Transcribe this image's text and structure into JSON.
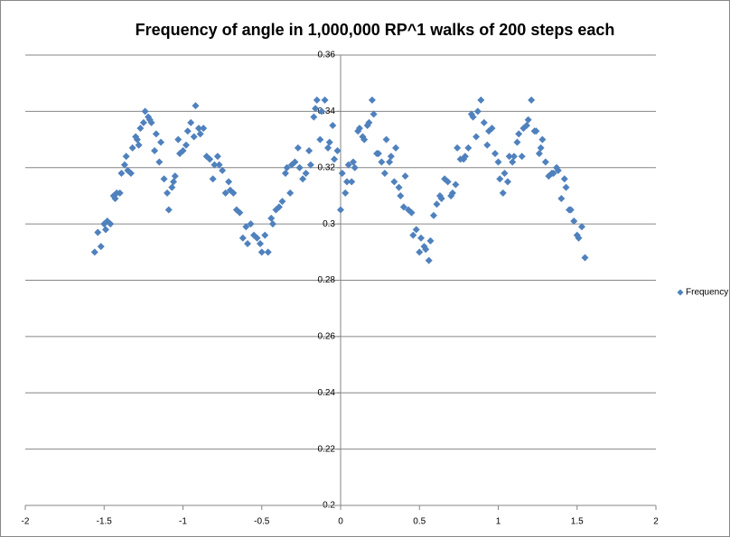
{
  "chart_data": {
    "type": "scatter",
    "title": "Frequency of angle in 1,000,000 RP^1 walks of 200 steps each",
    "xlim": [
      -2,
      2
    ],
    "xticks": [
      -2,
      -1.5,
      -1,
      -0.5,
      0,
      0.5,
      1,
      1.5,
      2
    ],
    "ylim": [
      0.2,
      0.36
    ],
    "yticks": [
      0.2,
      0.22,
      0.24,
      0.26,
      0.28,
      0.3,
      0.32,
      0.34,
      0.36
    ],
    "grid": true,
    "legend": "right",
    "series": [
      {
        "name": "Frequency",
        "color": "#4f81bd",
        "x": [
          -1.56,
          -1.54,
          -1.52,
          -1.5,
          -1.49,
          -1.48,
          -1.46,
          -1.44,
          -1.43,
          -1.42,
          -1.4,
          -1.39,
          -1.37,
          -1.36,
          -1.35,
          -1.33,
          -1.32,
          -1.3,
          -1.29,
          -1.28,
          -1.27,
          -1.25,
          -1.24,
          -1.22,
          -1.21,
          -1.2,
          -1.18,
          -1.17,
          -1.15,
          -1.14,
          -1.12,
          -1.1,
          -1.09,
          -1.07,
          -1.06,
          -1.05,
          -1.03,
          -1.02,
          -1,
          -0.98,
          -0.97,
          -0.95,
          -0.93,
          -0.92,
          -0.9,
          -0.89,
          -0.87,
          -0.85,
          -0.83,
          -0.81,
          -0.8,
          -0.78,
          -0.77,
          -0.75,
          -0.73,
          -0.71,
          -0.7,
          -0.68,
          -0.66,
          -0.64,
          -0.62,
          -0.6,
          -0.59,
          -0.57,
          -0.55,
          -0.53,
          -0.51,
          -0.5,
          -0.48,
          -0.46,
          -0.44,
          -0.43,
          -0.41,
          -0.39,
          -0.37,
          -0.35,
          -0.34,
          -0.32,
          -0.31,
          -0.29,
          -0.27,
          -0.26,
          -0.24,
          -0.22,
          -0.2,
          -0.19,
          -0.17,
          -0.16,
          -0.15,
          -0.13,
          -0.12,
          -0.1,
          -0.08,
          -0.07,
          -0.05,
          -0.04,
          -0.02,
          0,
          0.01,
          0.03,
          0.04,
          0.05,
          0.07,
          0.08,
          0.09,
          0.11,
          0.12,
          0.14,
          0.15,
          0.17,
          0.18,
          0.2,
          0.21,
          0.23,
          0.24,
          0.26,
          0.28,
          0.29,
          0.31,
          0.32,
          0.34,
          0.35,
          0.37,
          0.38,
          0.4,
          0.41,
          0.43,
          0.45,
          0.46,
          0.48,
          0.5,
          0.51,
          0.53,
          0.54,
          0.56,
          0.57,
          0.59,
          0.61,
          0.63,
          0.64,
          0.66,
          0.68,
          0.7,
          0.71,
          0.73,
          0.74,
          0.76,
          0.78,
          0.79,
          0.81,
          0.83,
          0.84,
          0.86,
          0.87,
          0.89,
          0.91,
          0.93,
          0.94,
          0.96,
          0.98,
          1,
          1.01,
          1.03,
          1.04,
          1.06,
          1.07,
          1.09,
          1.1,
          1.12,
          1.13,
          1.15,
          1.16,
          1.18,
          1.19,
          1.21,
          1.23,
          1.24,
          1.26,
          1.27,
          1.28,
          1.3,
          1.32,
          1.34,
          1.35,
          1.37,
          1.38,
          1.4,
          1.42,
          1.43,
          1.45,
          1.46,
          1.48,
          1.5,
          1.51,
          1.53,
          1.55
        ],
        "values": [
          0.29,
          0.297,
          0.292,
          0.3,
          0.298,
          0.301,
          0.3,
          0.31,
          0.309,
          0.311,
          0.311,
          0.318,
          0.321,
          0.324,
          0.319,
          0.318,
          0.327,
          0.331,
          0.33,
          0.328,
          0.334,
          0.336,
          0.34,
          0.338,
          0.337,
          0.336,
          0.326,
          0.332,
          0.322,
          0.329,
          0.316,
          0.311,
          0.305,
          0.313,
          0.315,
          0.317,
          0.33,
          0.325,
          0.326,
          0.328,
          0.333,
          0.336,
          0.331,
          0.342,
          0.334,
          0.332,
          0.334,
          0.324,
          0.323,
          0.316,
          0.321,
          0.324,
          0.321,
          0.319,
          0.311,
          0.315,
          0.312,
          0.311,
          0.305,
          0.304,
          0.295,
          0.299,
          0.293,
          0.3,
          0.296,
          0.295,
          0.293,
          0.29,
          0.296,
          0.29,
          0.302,
          0.3,
          0.305,
          0.306,
          0.308,
          0.318,
          0.32,
          0.311,
          0.321,
          0.322,
          0.327,
          0.32,
          0.316,
          0.318,
          0.326,
          0.321,
          0.338,
          0.341,
          0.344,
          0.33,
          0.34,
          0.344,
          0.327,
          0.329,
          0.335,
          0.323,
          0.326,
          0.305,
          0.318,
          0.311,
          0.315,
          0.321,
          0.315,
          0.322,
          0.32,
          0.333,
          0.334,
          0.331,
          0.33,
          0.335,
          0.336,
          0.344,
          0.339,
          0.325,
          0.325,
          0.322,
          0.318,
          0.33,
          0.322,
          0.324,
          0.315,
          0.327,
          0.313,
          0.31,
          0.306,
          0.317,
          0.305,
          0.304,
          0.296,
          0.298,
          0.29,
          0.295,
          0.292,
          0.291,
          0.287,
          0.294,
          0.303,
          0.307,
          0.31,
          0.309,
          0.316,
          0.315,
          0.31,
          0.311,
          0.314,
          0.327,
          0.323,
          0.323,
          0.324,
          0.327,
          0.339,
          0.338,
          0.331,
          0.34,
          0.344,
          0.336,
          0.328,
          0.333,
          0.334,
          0.325,
          0.322,
          0.316,
          0.311,
          0.318,
          0.315,
          0.324,
          0.322,
          0.324,
          0.329,
          0.332,
          0.324,
          0.334,
          0.335,
          0.337,
          0.344,
          0.333,
          0.333,
          0.325,
          0.327,
          0.33,
          0.322,
          0.317,
          0.318,
          0.318,
          0.32,
          0.319,
          0.309,
          0.316,
          0.313,
          0.305,
          0.305,
          0.301,
          0.296,
          0.295,
          0.299,
          0.288
        ]
      }
    ]
  }
}
